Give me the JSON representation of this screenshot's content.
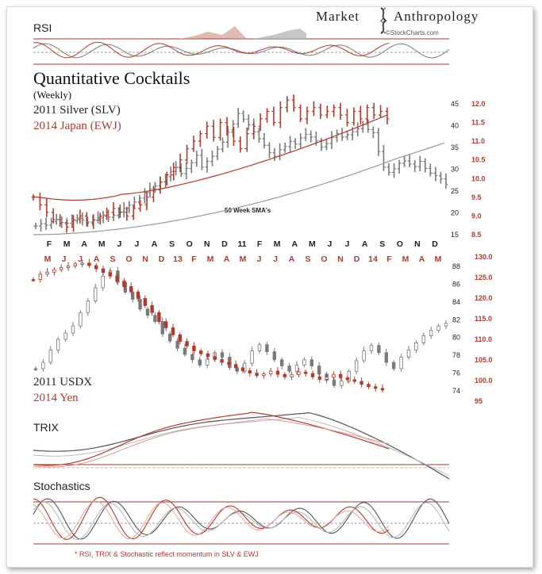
{
  "brand": {
    "name_left": "Market",
    "name_right": "Anthropology",
    "credit": "©StockCharts.com"
  },
  "colors": {
    "grey": "#7a7a7a",
    "red": "#b23a2c",
    "grid": "#9a3a30"
  },
  "panels": {
    "rsi_label": "RSI",
    "trix_label": "TRIX",
    "stoch_label": "Stochastics",
    "footnote": "* RSI, TRIX & Stochastic reflect momentum in SLV & EWJ"
  },
  "chart_data": [
    {
      "type": "line",
      "title": "Quantitative Cocktails",
      "subtitle": "(Weekly)",
      "annotation": "50 Week SMA's",
      "series": [
        {
          "name": "2011 Silver (SLV)",
          "color": "#7a7a7a"
        },
        {
          "name": "2014 Japan (EWJ)",
          "color": "#b23a2c"
        }
      ],
      "y_left_ticks": [
        "45",
        "40",
        "35",
        "30",
        "25",
        "20",
        "15"
      ],
      "y_right_ticks": [
        "12.0",
        "11.5",
        "11.0",
        "10.5",
        "10.0",
        "9.5",
        "9.0",
        "8.5"
      ],
      "x_top_months": [
        "F",
        "M",
        "A",
        "M",
        "J",
        "J",
        "A",
        "S",
        "O",
        "N",
        "D",
        "11",
        "F",
        "M",
        "A",
        "M",
        "J",
        "J",
        "A",
        "S",
        "O",
        "N",
        "D"
      ],
      "x_bottom_months": [
        "M",
        "J",
        "J",
        "A",
        "S",
        "O",
        "N",
        "D",
        "13",
        "F",
        "M",
        "A",
        "M",
        "J",
        "J",
        "A",
        "S",
        "O",
        "N",
        "D",
        "14",
        "F",
        "M",
        "A",
        "M"
      ],
      "slv_closes": [
        17,
        17.5,
        17.2,
        18,
        18.5,
        17.8,
        17.6,
        18.2,
        18.8,
        18.4,
        17.9,
        18.3,
        18.9,
        19.5,
        19,
        19.4,
        20.2,
        21,
        21.8,
        22.5,
        23.4,
        24.6,
        25.5,
        26.2,
        27.1,
        28.3,
        29.5,
        30.4,
        29,
        30.2,
        31.5,
        33.2,
        30.5,
        31.8,
        33,
        34.6,
        36.2,
        38.5,
        40.4,
        42.8,
        41.5,
        40.2,
        38.6,
        37,
        35.5,
        33.8,
        33,
        34.5,
        35.2,
        36.4,
        35.8,
        37.2,
        38,
        37.4,
        36.5,
        35.1,
        35.9,
        37.3,
        38.2,
        37.4,
        37.9,
        38.6,
        39.3,
        40.2,
        39.1,
        38.4,
        34.1,
        30.5,
        29.3,
        30.1,
        31.4,
        31.9,
        31.2,
        30.6,
        31.8,
        30.2,
        29.1,
        28.5,
        27.8,
        26.5
      ],
      "ewj_closes": [
        9.5,
        9.3,
        9.1,
        8.9,
        8.8,
        8.7,
        8.9,
        9.0,
        8.8,
        8.9,
        9.0,
        9.1,
        9.2,
        9.1,
        9.0,
        9.2,
        9.3,
        9.5,
        9.7,
        9.9,
        10.1,
        10.3,
        10.5,
        10.8,
        11.0,
        11.2,
        11.4,
        11.1,
        11.5,
        11.3,
        11.0,
        10.8,
        11.2,
        11.4,
        11.6,
        11.8,
        11.5,
        11.9,
        12.1,
        11.9,
        11.6,
        11.8,
        11.9,
        11.7,
        11.8,
        11.9,
        11.7,
        11.5,
        11.8,
        11.6,
        11.9,
        11.7,
        11.8,
        11.6
      ]
    },
    {
      "type": "line",
      "series": [
        {
          "name": "2011 USDX",
          "color": "#7a7a7a"
        },
        {
          "name": "2014 Yen",
          "color": "#b23a2c"
        }
      ],
      "y_left_ticks": [
        "88",
        "86",
        "84",
        "82",
        "80",
        "78",
        "76",
        "74"
      ],
      "y_right_ticks": [
        "130.0",
        "125.0",
        "120.0",
        "115.0",
        "110.0",
        "105.0",
        "100.0",
        "95"
      ],
      "usdx_closes": [
        76.5,
        77.2,
        78.6,
        79.8,
        80.5,
        81.3,
        82.8,
        84.1,
        85.6,
        86.9,
        87.5,
        86.2,
        85.1,
        84.3,
        83.2,
        82.5,
        81.8,
        80.4,
        79.6,
        78.8,
        78.1,
        77.5,
        76.9,
        77.6,
        78.3,
        77.8,
        76.6,
        76.2,
        77.1,
        78.5,
        79.2,
        78.4,
        77.5,
        76.8,
        76.2,
        76.9,
        77.5,
        76.8,
        75.9,
        75.2,
        74.6,
        75.1,
        76.2,
        77.4,
        78.5,
        79.1,
        78.3,
        77.2,
        76.5,
        77.8,
        78.6,
        79.4,
        80.2,
        80.8,
        81.3,
        81.6
      ],
      "yen_closes": [
        124.5,
        125.8,
        126.3,
        126.9,
        127.4,
        127.8,
        128.3,
        128.5,
        127.9,
        127.1,
        126.2,
        125.4,
        124.1,
        122.8,
        121.5,
        119.9,
        118.2,
        116.5,
        114.3,
        112.8,
        111.1,
        109.5,
        108.4,
        107.2,
        106.5,
        105.8,
        105.1,
        104.4,
        103.9,
        103.1,
        102.4,
        101.8,
        101.2,
        101.6,
        102.3,
        101.5,
        100.9,
        101.4,
        102.1,
        101.7,
        100.9,
        100.3,
        100.8,
        101.5,
        100.7,
        100.2,
        99.8,
        99.1,
        98.5,
        98.1,
        97.7
      ]
    }
  ]
}
